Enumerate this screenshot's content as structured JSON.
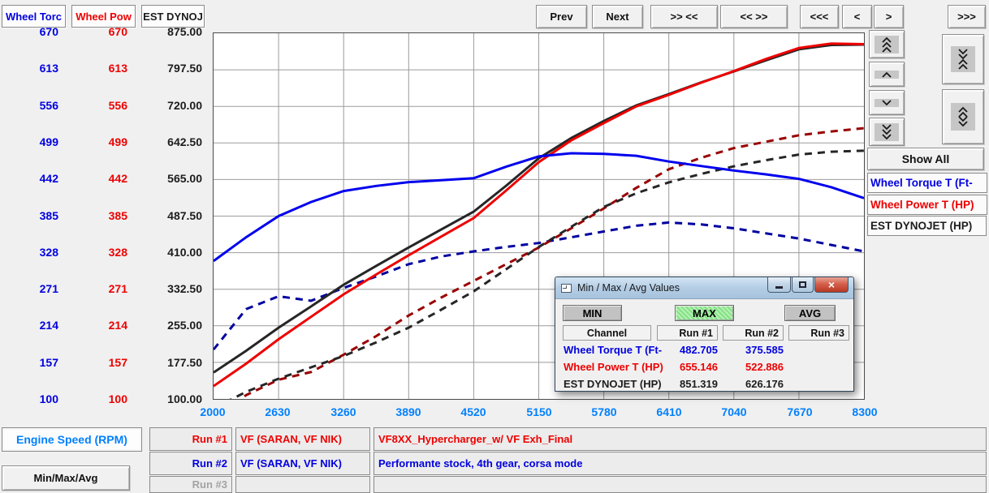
{
  "y_axis_headers": [
    {
      "label": "Wheel Torc",
      "color": "#0000e0"
    },
    {
      "label": "Wheel Pow",
      "color": "#ee0000"
    },
    {
      "label": "EST DYNOJ",
      "color": "#1c1c1c"
    }
  ],
  "y_axes": {
    "torque_ticks": [
      "670",
      "613",
      "556",
      "499",
      "442",
      "385",
      "328",
      "271",
      "214",
      "157",
      "100"
    ],
    "power_ticks": [
      "670",
      "613",
      "556",
      "499",
      "442",
      "385",
      "328",
      "271",
      "214",
      "157",
      "100"
    ],
    "dynojet_ticks": [
      "875.00",
      "797.50",
      "720.00",
      "642.50",
      "565.00",
      "487.50",
      "410.00",
      "332.50",
      "255.00",
      "177.50",
      "100.00"
    ]
  },
  "toolbar": {
    "buttons": [
      "Prev",
      "Next",
      ">> <<",
      "<< >>",
      "<<<",
      "<",
      ">",
      ">>>"
    ]
  },
  "right_panel": {
    "scroll_buttons": [
      {
        "icon": "chevron-triple-up"
      },
      {
        "icon": "chevron-up"
      },
      {
        "icon": "chevron-down"
      },
      {
        "icon": "chevron-triple-down"
      },
      {
        "icon": "zoom-in-vertical (down-down-up-up)"
      },
      {
        "icon": "zoom-out-vertical (up-up-down-down)"
      }
    ],
    "show_all_label": "Show All",
    "legend": [
      {
        "label": "Wheel Torque T (Ft-",
        "color": "#0000e0"
      },
      {
        "label": "Wheel Power T (HP)",
        "color": "#ee0000"
      },
      {
        "label": "EST DYNOJET (HP)",
        "color": "#1c1c1c"
      }
    ]
  },
  "x_axis": {
    "label": "Engine Speed (RPM)",
    "ticks": [
      "2000",
      "2630",
      "3260",
      "3890",
      "4520",
      "5150",
      "5780",
      "6410",
      "7040",
      "7670",
      "8300"
    ]
  },
  "bottom": {
    "minmax_button_label": "Min/Max/Avg",
    "runs": [
      {
        "label": "Run #1",
        "name": "VF (SARAN, VF NIK)",
        "comment": "VF8XX_Hypercharger_w/ VF Exh_Final",
        "color": "#ee0000"
      },
      {
        "label": "Run #2",
        "name": "VF (SARAN, VF NIK)",
        "comment": "Performante stock, 4th gear, corsa mode",
        "color": "#0000e0"
      },
      {
        "label": "Run #3",
        "name": "",
        "comment": "",
        "color": "#a3a3a3"
      }
    ]
  },
  "popup": {
    "title": "Min / Max / Avg Values",
    "buttons": {
      "min": "MIN",
      "max": "MAX",
      "avg": "AVG",
      "selected": "MAX"
    },
    "columns": [
      "Channel",
      "Run #1",
      "Run #2",
      "Run #3"
    ],
    "rows": [
      {
        "channel": "Wheel Torque T (Ft-",
        "run1": "482.705",
        "run2": "375.585",
        "run3": "",
        "color": "#0000e0"
      },
      {
        "channel": "Wheel Power T (HP)",
        "run1": "655.146",
        "run2": "522.886",
        "run3": "",
        "color": "#ee0000"
      },
      {
        "channel": "EST DYNOJET (HP)",
        "run1": "851.319",
        "run2": "626.176",
        "run3": "",
        "color": "#1c1c1c"
      }
    ]
  },
  "chart_data": {
    "type": "line",
    "title": "Dyno runs: wheel torque, wheel power and estimated Dynojet power vs engine speed",
    "xlabel": "Engine Speed (RPM)",
    "x_range": [
      2000,
      8300
    ],
    "x_ticks": [
      2000,
      2630,
      3260,
      3890,
      4520,
      5150,
      5780,
      6410,
      7040,
      7670,
      8300
    ],
    "grid": true,
    "axes": {
      "torque_power_range": [
        100,
        670
      ],
      "dynojet_range": [
        100,
        875
      ]
    },
    "x": [
      2000,
      2315,
      2630,
      2945,
      3260,
      3575,
      3890,
      4205,
      4520,
      4835,
      5150,
      5465,
      5780,
      6095,
      6410,
      6725,
      7040,
      7355,
      7670,
      7985,
      8300
    ],
    "series": [
      {
        "name": "Run #2 Wheel Torque T (Ft-Lbs)",
        "run": "Run #2",
        "style": "dashed",
        "color": "#0000a0",
        "scale": "torque_power",
        "max_shown": 375.585,
        "values": [
          177,
          240,
          260,
          253,
          273,
          291,
          310,
          322,
          330,
          337,
          343,
          352,
          361,
          370,
          375,
          372,
          366,
          358,
          350,
          340,
          330
        ]
      },
      {
        "name": "Run #2 Wheel Power T (HP)",
        "run": "Run #2",
        "style": "dashed",
        "color": "#990000",
        "scale": "torque_power",
        "max_shown": 522.886,
        "values": [
          67,
          106,
          130,
          142,
          169,
          198,
          230,
          258,
          284,
          310,
          336,
          366,
          397,
          429,
          458,
          476,
          491,
          501,
          511,
          517,
          522
        ]
      },
      {
        "name": "Run #2 EST DYNOJET (HP)",
        "run": "Run #2",
        "style": "dashed",
        "color": "#262626",
        "scale": "dynojet",
        "max_shown": 626.176,
        "values": [
          80,
          115,
          143,
          167,
          191,
          220,
          251,
          289,
          328,
          375,
          422,
          465,
          507,
          536,
          559,
          577,
          593,
          606,
          618,
          624,
          626
        ]
      },
      {
        "name": "Run #1 EST DYNOJET (HP)",
        "run": "Run #1",
        "style": "solid",
        "color": "#262626",
        "scale": "dynojet",
        "max_shown": 851.319,
        "values": [
          156,
          202,
          251,
          296,
          342,
          382,
          421,
          459,
          497,
          552,
          610,
          653,
          689,
          722,
          746,
          771,
          794,
          818,
          841,
          850,
          851
        ]
      },
      {
        "name": "Run #1 Wheel Power T (HP)",
        "run": "Run #1",
        "style": "solid",
        "color": "#ee0000",
        "scale": "torque_power",
        "max_shown": 655.146,
        "values": [
          120,
          155,
          193,
          228,
          263,
          294,
          324,
          353,
          382,
          425,
          469,
          503,
          530,
          556,
          574,
          593,
          611,
          630,
          647,
          654,
          653
        ]
      },
      {
        "name": "Run #1 Wheel Torque T (Ft-Lbs)",
        "run": "Run #1",
        "style": "solid",
        "color": "#0000ee",
        "scale": "torque_power",
        "max_shown": 482.705,
        "values": [
          315,
          352,
          385,
          407,
          424,
          432,
          438,
          441,
          444,
          462,
          478,
          483,
          482,
          479,
          470,
          463,
          456,
          450,
          443,
          430,
          413
        ]
      }
    ]
  }
}
